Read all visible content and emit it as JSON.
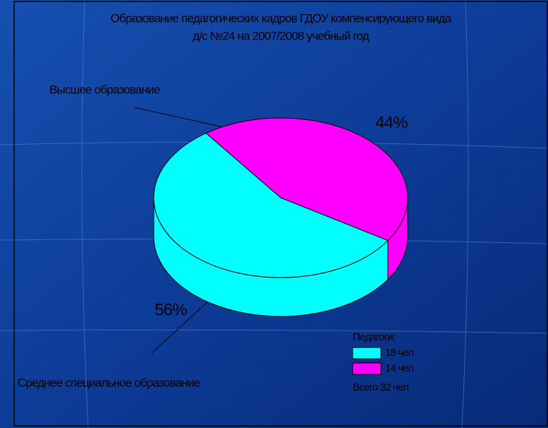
{
  "chart_data": {
    "type": "pie",
    "title": [
      "Образование педагогических кадров ГДОУ компенсирующего вида",
      "д/с №24 на 2007/2008 учебный год"
    ],
    "categories": [
      "Среднее специальное образование",
      "Высшее образование"
    ],
    "values": [
      56,
      44
    ],
    "value_labels": [
      "56%",
      "44%"
    ],
    "colors": [
      "#00ffff",
      "#ff00ff"
    ],
    "legend": {
      "title": "Педагоги:",
      "entries": [
        "18 чел",
        "14 чел"
      ],
      "footer": "Всего 32 чел"
    }
  }
}
